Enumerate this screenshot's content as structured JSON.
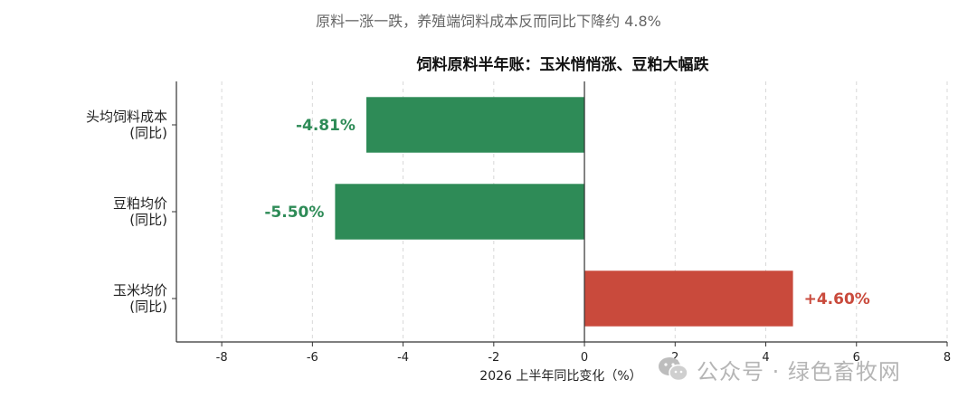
{
  "caption": "原料一涨一跌，养殖端饲料成本反而同比下降约 4.8%",
  "chart_data": {
    "type": "bar",
    "orientation": "horizontal",
    "title": "饲料原料半年账：玉米悄悄涨、豆粕大幅跌",
    "xlabel": "2026 上半年同比变化（%）",
    "ylabel": "",
    "xlim": [
      -9,
      8
    ],
    "xticks": [
      -8,
      -6,
      -4,
      -2,
      0,
      2,
      4,
      6,
      8
    ],
    "grid": true,
    "categories": [
      [
        "头均饲料成本",
        "(同比)"
      ],
      [
        "豆粕均价",
        "(同比)"
      ],
      [
        "玉米均价",
        "(同比)"
      ]
    ],
    "values": [
      -4.81,
      -5.5,
      4.6
    ],
    "value_labels": [
      "-4.81%",
      "-5.50%",
      "+4.60%"
    ],
    "colors": {
      "negative": "#2e8b57",
      "positive": "#c94a3c"
    }
  },
  "watermark": {
    "icon": "wechat-icon",
    "text": "公众号 · 绿色畜牧网"
  }
}
